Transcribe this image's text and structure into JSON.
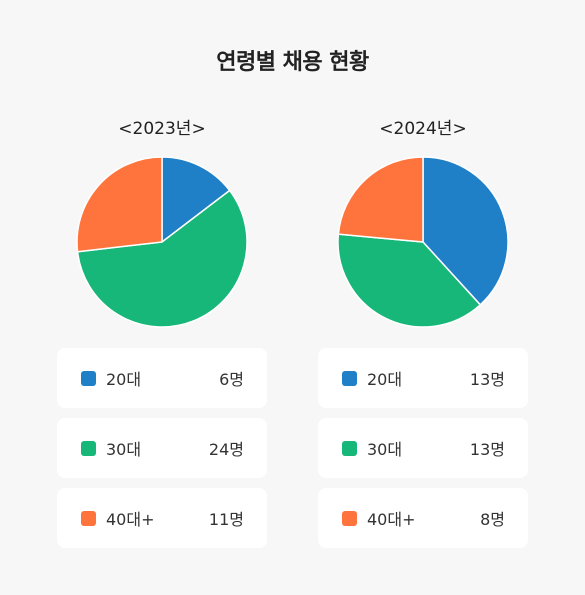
{
  "title": "연령별 채용 현황",
  "colors": {
    "20대": "#1f7fc7",
    "30대": "#17b679",
    "40대+": "#ff743d"
  },
  "chart_data": [
    {
      "type": "pie",
      "title": "<2023년>",
      "categories": [
        "20대",
        "30대",
        "40대+"
      ],
      "values": [
        6,
        24,
        11
      ],
      "value_labels": [
        "6명",
        "24명",
        "11명"
      ],
      "start_angle": "12 o'clock, clockwise"
    },
    {
      "type": "pie",
      "title": "<2024년>",
      "categories": [
        "20대",
        "30대",
        "40대+"
      ],
      "values": [
        13,
        13,
        8
      ],
      "value_labels": [
        "13명",
        "13명",
        "8명"
      ],
      "start_angle": "12 o'clock, clockwise"
    }
  ]
}
